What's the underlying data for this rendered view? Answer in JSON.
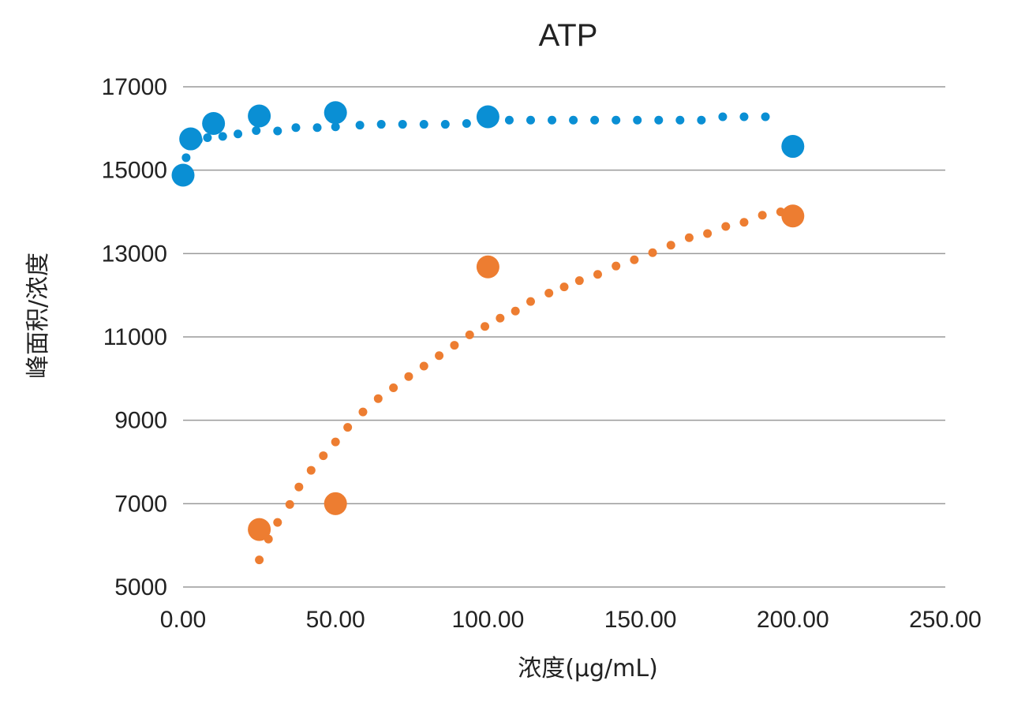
{
  "chart_data": {
    "type": "scatter",
    "title": "ATP",
    "xlabel": "浓度(μg/mL)",
    "ylabel": "峰面积/浓度",
    "xlim": [
      0,
      250
    ],
    "ylim": [
      5000,
      17000
    ],
    "x_tick_labels": [
      "0.00",
      "50.00",
      "100.00",
      "150.00",
      "200.00",
      "250.00"
    ],
    "x_tick_values": [
      0,
      50,
      100,
      150,
      200,
      250
    ],
    "y_tick_labels": [
      "5000",
      "7000",
      "9000",
      "11000",
      "13000",
      "15000",
      "17000"
    ],
    "y_tick_values": [
      5000,
      7000,
      9000,
      11000,
      13000,
      15000,
      17000
    ],
    "grid": "horizontal",
    "series": [
      {
        "color": "#0a8fd4",
        "points": [
          {
            "x": 0,
            "y": 14880
          },
          {
            "x": 2.5,
            "y": 15750
          },
          {
            "x": 10,
            "y": 16120
          },
          {
            "x": 25,
            "y": 16300
          },
          {
            "x": 50,
            "y": 16380
          },
          {
            "x": 100,
            "y": 16280
          },
          {
            "x": 200,
            "y": 15570
          }
        ],
        "trendline": {
          "x": [
            1,
            3,
            5,
            8,
            13,
            18,
            24,
            31,
            37,
            44,
            50,
            58,
            65,
            72,
            79,
            86,
            93,
            100,
            107,
            114,
            121,
            128,
            135,
            142,
            149,
            156,
            163,
            170,
            177,
            184,
            191
          ],
          "y": [
            15300,
            15650,
            15720,
            15780,
            15810,
            15870,
            15950,
            15940,
            16020,
            16020,
            16040,
            16080,
            16100,
            16100,
            16100,
            16100,
            16120,
            16150,
            16200,
            16200,
            16200,
            16200,
            16200,
            16200,
            16200,
            16200,
            16200,
            16200,
            16280,
            16280,
            16280
          ]
        }
      },
      {
        "color": "#ed7d31",
        "points": [
          {
            "x": 25,
            "y": 6380
          },
          {
            "x": 50,
            "y": 7000
          },
          {
            "x": 100,
            "y": 12680
          },
          {
            "x": 200,
            "y": 13900
          }
        ],
        "trendline": {
          "x": [
            25,
            28,
            31,
            35,
            38,
            42,
            46,
            50,
            54,
            59,
            64,
            69,
            74,
            79,
            84,
            89,
            94,
            99,
            104,
            109,
            114,
            120,
            125,
            130,
            136,
            142,
            148,
            154,
            160,
            166,
            172,
            178,
            184,
            190,
            196
          ],
          "y": [
            5650,
            6150,
            6550,
            6980,
            7400,
            7800,
            8150,
            8480,
            8830,
            9200,
            9520,
            9780,
            10050,
            10300,
            10550,
            10800,
            11050,
            11250,
            11450,
            11620,
            11850,
            12050,
            12200,
            12350,
            12500,
            12700,
            12850,
            13020,
            13200,
            13380,
            13480,
            13650,
            13750,
            13920,
            14000
          ]
        }
      }
    ]
  }
}
